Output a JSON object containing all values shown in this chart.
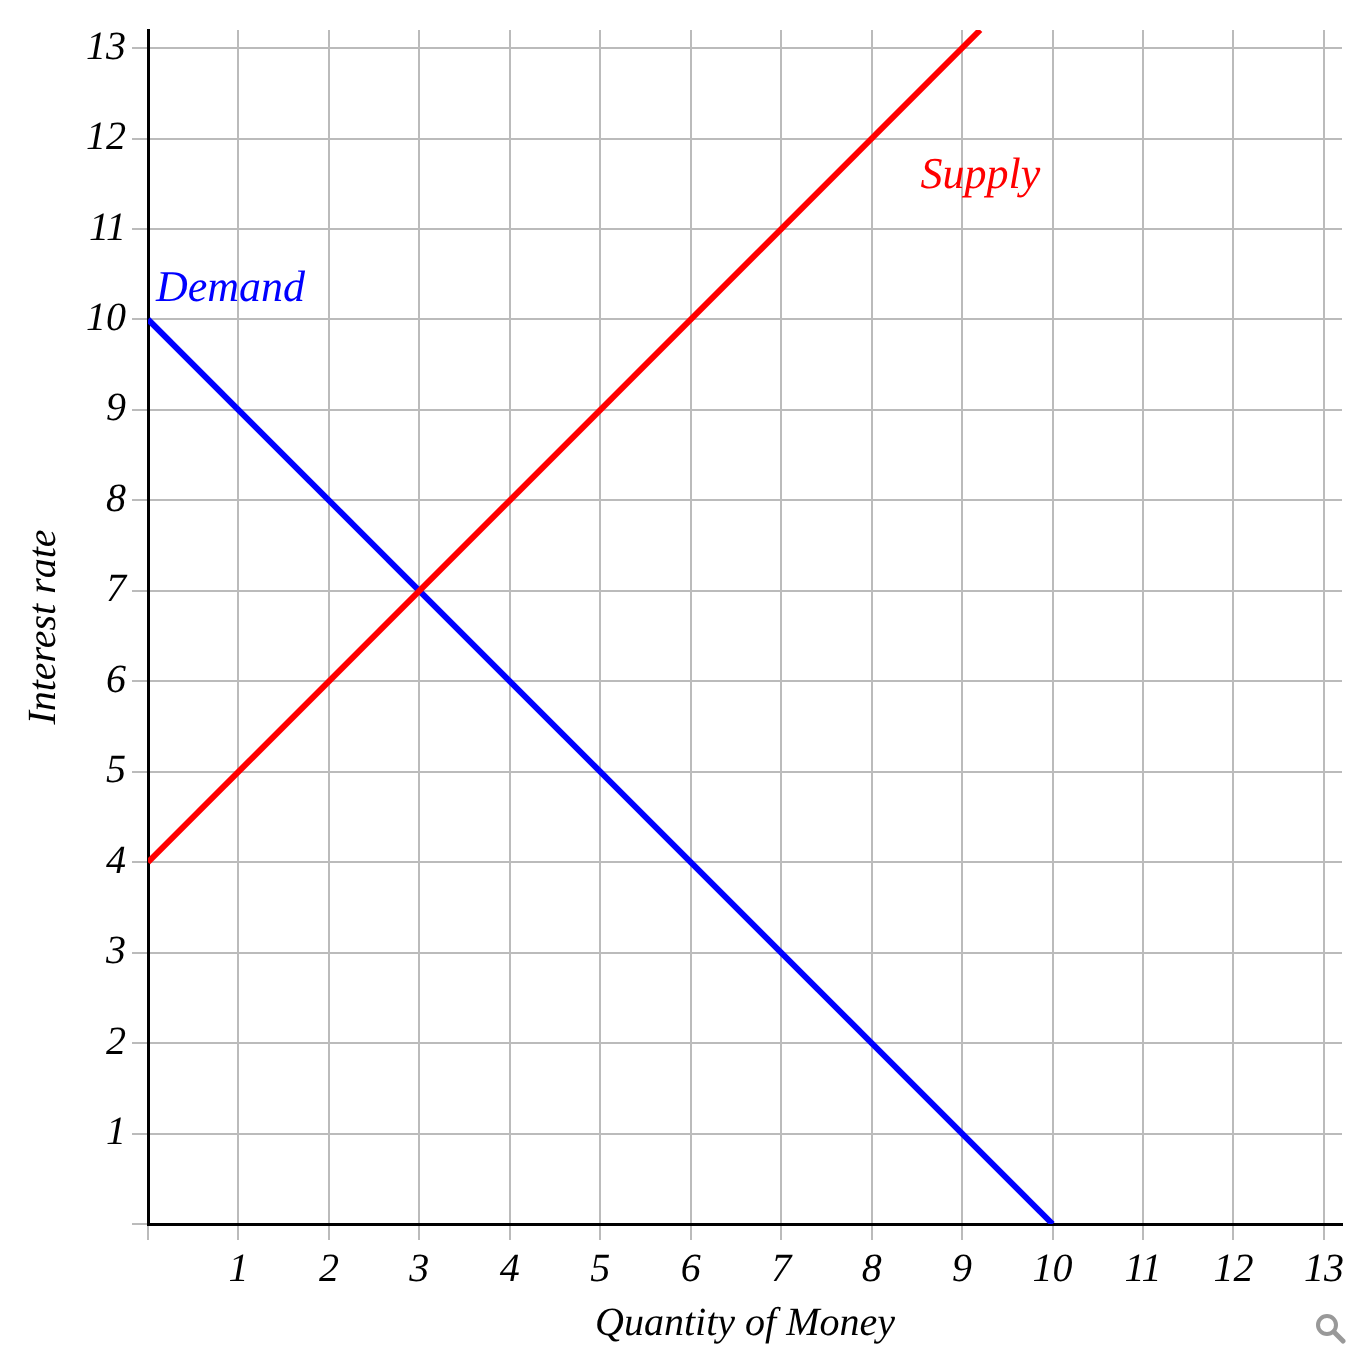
{
  "chart_data": {
    "type": "line",
    "xlabel": "Quantity of Money",
    "ylabel": "Interest rate",
    "series": [
      {
        "name": "Supply",
        "color": "#ff0000",
        "x": [
          0,
          9.2
        ],
        "values": [
          4,
          13.2
        ]
      },
      {
        "name": "Demand",
        "color": "#0000ff",
        "x": [
          0,
          10
        ],
        "values": [
          10,
          0
        ]
      }
    ],
    "xlim": [
      0,
      13.2
    ],
    "ylim": [
      0,
      13.2
    ],
    "xticks": [
      {
        "value": 0,
        "label": null
      },
      1,
      2,
      3,
      4,
      5,
      6,
      7,
      8,
      9,
      10,
      11,
      12,
      13
    ],
    "yticks": [
      {
        "value": 0,
        "label": null
      },
      1,
      2,
      3,
      4,
      5,
      6,
      7,
      8,
      9,
      10,
      11,
      12,
      13
    ],
    "grid": true,
    "legend": false,
    "marker": "none",
    "line_style": "solid"
  }
}
